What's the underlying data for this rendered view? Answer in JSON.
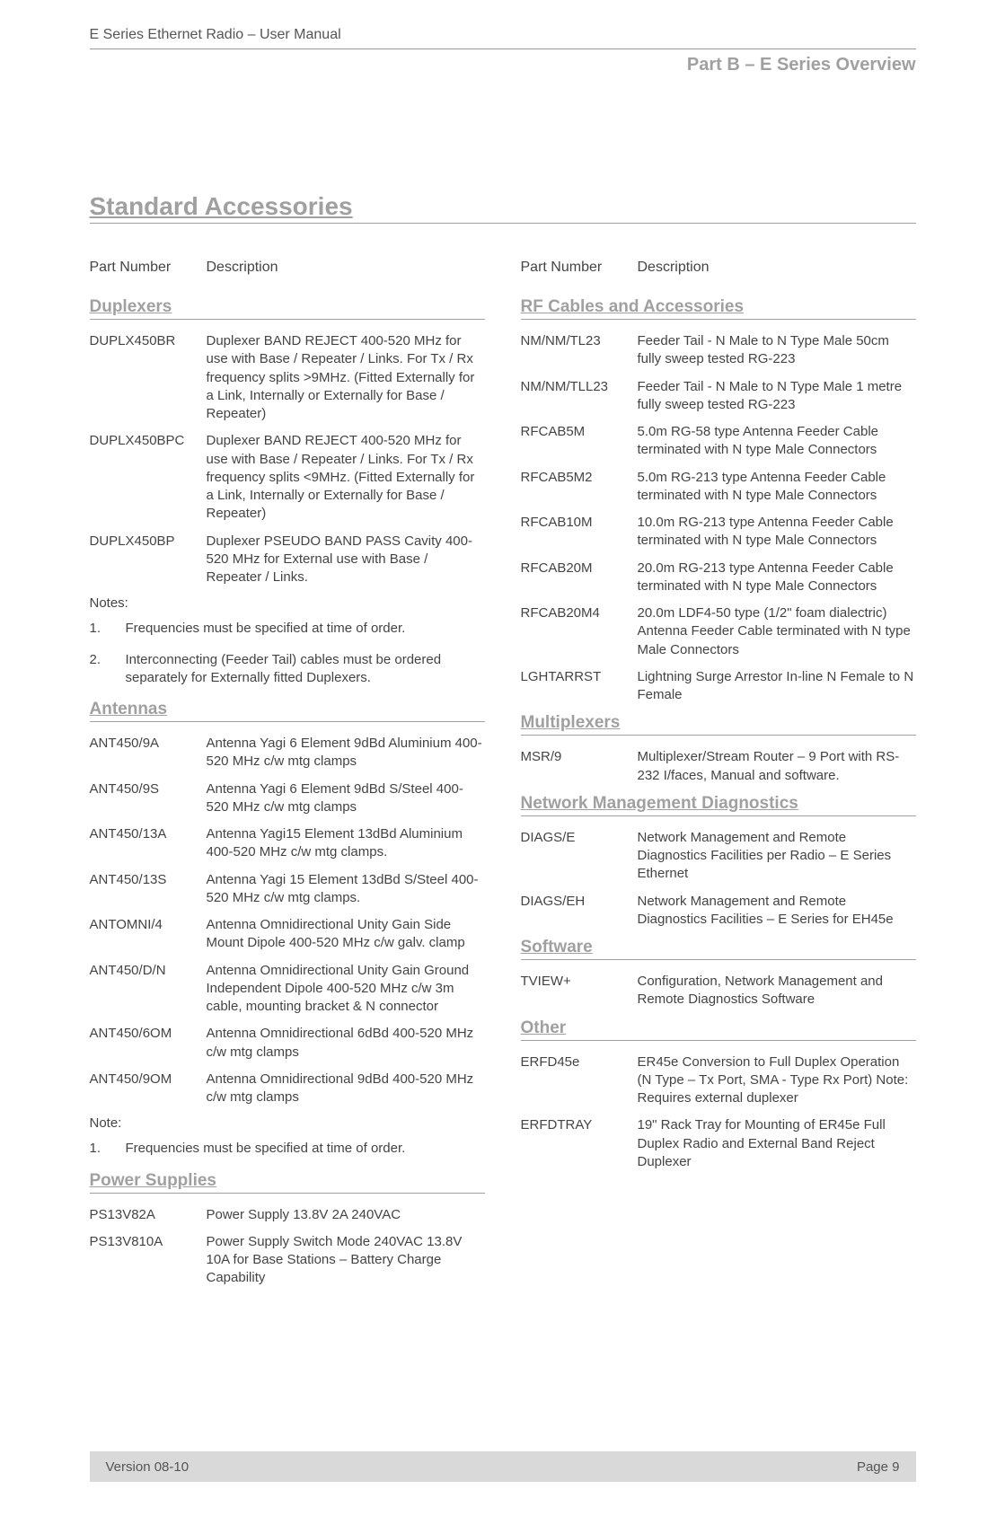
{
  "header": {
    "doc_title": "E Series Ethernet Radio – User Manual",
    "part_label": "Part B – E Series Overview"
  },
  "main_title": "Standard Accessories",
  "col_headers": {
    "part_number": "Part Number",
    "description": "Description"
  },
  "left": {
    "sections": [
      {
        "title": "Duplexers",
        "rows": [
          {
            "pn": "DUPLX450BR",
            "desc": "Duplexer BAND REJECT 400-520 MHz for use with Base / Repeater / Links. For Tx / Rx frequency splits >9MHz. (Fitted Externally for a Link, Internally or Externally for Base / Repeater)"
          },
          {
            "pn": "DUPLX450BPC",
            "desc": "Duplexer BAND REJECT 400-520 MHz for use with Base / Repeater / Links. For Tx / Rx frequency splits <9MHz. (Fitted Externally for a Link, Internally or Externally for Base / Repeater)"
          },
          {
            "pn": "DUPLX450BP",
            "desc": "Duplexer PSEUDO BAND PASS Cavity 400-520 MHz for External use with Base / Repeater / Links."
          }
        ],
        "notes_label": "Notes:",
        "notes": [
          "Frequencies must be specified at time of order.",
          "Interconnecting (Feeder Tail) cables must be ordered separately for Externally fitted Duplexers."
        ]
      },
      {
        "title": "Antennas",
        "rows": [
          {
            "pn": "ANT450/9A",
            "desc": "Antenna Yagi 6 Element 9dBd Aluminium 400-520 MHz c/w mtg clamps"
          },
          {
            "pn": "ANT450/9S",
            "desc": "Antenna Yagi 6 Element 9dBd S/Steel 400-520 MHz c/w mtg clamps"
          },
          {
            "pn": "ANT450/13A",
            "desc": "Antenna Yagi15 Element 13dBd Aluminium 400-520 MHz c/w mtg clamps."
          },
          {
            "pn": "ANT450/13S",
            "desc": "Antenna Yagi 15 Element 13dBd S/Steel 400-520 MHz c/w mtg clamps."
          },
          {
            "pn": "ANTOMNI/4",
            "desc": "Antenna Omnidirectional Unity Gain Side Mount Dipole 400-520 MHz c/w galv. clamp"
          },
          {
            "pn": "ANT450/D/N",
            "desc": "Antenna Omnidirectional Unity Gain Ground Independent Dipole  400-520 MHz  c/w 3m cable, mounting bracket & N connector"
          },
          {
            "pn": "ANT450/6OM",
            "desc": "Antenna Omnidirectional  6dBd 400-520 MHz c/w mtg clamps"
          },
          {
            "pn": "ANT450/9OM",
            "desc": "Antenna Omnidirectional 9dBd 400-520 MHz c/w mtg clamps"
          }
        ],
        "notes_label": "Note:",
        "notes": [
          "Frequencies must be specified at time of order."
        ]
      },
      {
        "title": "Power Supplies",
        "rows": [
          {
            "pn": "PS13V82A",
            "desc": "Power Supply 13.8V 2A 240VAC"
          },
          {
            "pn": "PS13V810A",
            "desc": "Power Supply Switch Mode 240VAC 13.8V 10A for Base Stations – Battery Charge Capability"
          }
        ]
      }
    ]
  },
  "right": {
    "sections": [
      {
        "title": "RF Cables and Accessories",
        "rows": [
          {
            "pn": "NM/NM/TL23",
            "desc": "Feeder Tail - N Male to N Type Male 50cm fully sweep tested RG-223"
          },
          {
            "pn": "NM/NM/TLL23",
            "desc": "Feeder Tail - N Male to N Type Male 1 metre fully sweep tested RG-223"
          },
          {
            "pn": "RFCAB5M",
            "desc": "5.0m RG-58 type Antenna Feeder Cable terminated with N type Male Connectors"
          },
          {
            "pn": "RFCAB5M2",
            "desc": "5.0m RG-213 type Antenna Feeder Cable terminated with N type Male Connectors"
          },
          {
            "pn": "RFCAB10M",
            "desc": "10.0m RG-213 type Antenna Feeder Cable terminated with N type Male Connectors"
          },
          {
            "pn": "RFCAB20M",
            "desc": "20.0m RG-213 type Antenna Feeder Cable terminated with N type Male Connectors"
          },
          {
            "pn": "RFCAB20M4",
            "desc": "20.0m LDF4-50 type (1/2\" foam dialectric) Antenna Feeder Cable terminated with N type Male Connectors"
          },
          {
            "pn": "LGHTARRST",
            "desc": "Lightning Surge Arrestor In-line N Female to N Female"
          }
        ]
      },
      {
        "title": "Multiplexers",
        "rows": [
          {
            "pn": "MSR/9",
            "desc": "Multiplexer/Stream Router – 9 Port with RS-232 I/faces, Manual and software."
          }
        ]
      },
      {
        "title": "Network Management Diagnostics",
        "rows": [
          {
            "pn": "DIAGS/E",
            "desc": "Network Management and Remote Diagnostics Facilities per Radio – E Series Ethernet"
          },
          {
            "pn": "DIAGS/EH",
            "desc": "Network Management and Remote Diagnostics Facilities – E Series for EH45e"
          }
        ]
      },
      {
        "title": "Software",
        "rows": [
          {
            "pn": "TVIEW+",
            "desc": "Configuration, Network Management and Remote Diagnostics Software"
          }
        ]
      },
      {
        "title": "Other",
        "rows": [
          {
            "pn": "ERFD45e",
            "desc": "ER45e Conversion to Full Duplex Operation (N Type – Tx Port, SMA - Type Rx Port) Note: Requires external duplexer"
          },
          {
            "pn": "ERFDTRAY",
            "desc": "19\" Rack Tray for Mounting of ER45e Full Duplex Radio and External Band Reject Duplexer"
          }
        ]
      }
    ]
  },
  "footer": {
    "version": "Version 08-10",
    "page": "Page 9"
  }
}
